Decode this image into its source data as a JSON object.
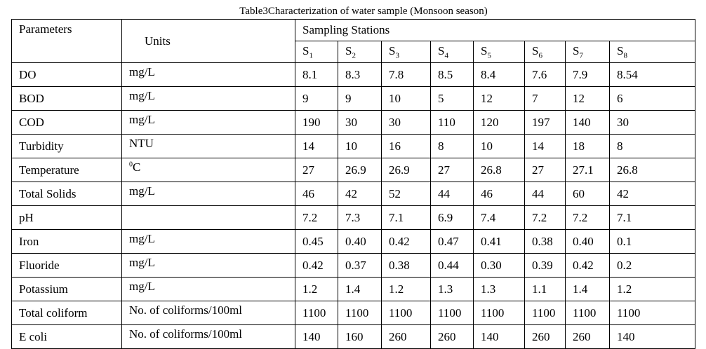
{
  "title": "Table3Characterization of water sample (Monsoon season)",
  "headers": {
    "parameters": "Parameters",
    "units": "Units",
    "sampling_stations": "Sampling Stations",
    "stations": [
      {
        "base": "S",
        "sub": "1"
      },
      {
        "base": "S",
        "sub": "2"
      },
      {
        "base": "S",
        "sub": "3"
      },
      {
        "base": "S",
        "sub": "4"
      },
      {
        "base": "S",
        "sub": "5"
      },
      {
        "base": "S",
        "sub": "6"
      },
      {
        "base": "S",
        "sub": "7"
      },
      {
        "base": "S",
        "sub": "8"
      }
    ]
  },
  "rows": [
    {
      "parameter": "DO",
      "unit": "mg/L",
      "values": [
        "8.1",
        "8.3",
        "7.8",
        "8.5",
        "8.4",
        "7.6",
        "7.9",
        "8.54"
      ]
    },
    {
      "parameter": "BOD",
      "unit": "mg/L",
      "values": [
        "9",
        "9",
        "10",
        "5",
        "12",
        "7",
        "12",
        "6"
      ]
    },
    {
      "parameter": "COD",
      "unit": "mg/L",
      "values": [
        "190",
        "30",
        "30",
        "110",
        "120",
        "197",
        "140",
        "30"
      ]
    },
    {
      "parameter": "Turbidity",
      "unit": "NTU",
      "values": [
        "14",
        "10",
        "16",
        "8",
        "10",
        "14",
        "18",
        "8"
      ]
    },
    {
      "parameter": "Temperature",
      "unit_sup": "0",
      "unit": "C",
      "values": [
        "27",
        "26.9",
        "26.9",
        "27",
        "26.8",
        "27",
        "27.1",
        "26.8"
      ]
    },
    {
      "parameter": "Total Solids",
      "unit": "mg/L",
      "values": [
        "46",
        "42",
        "52",
        "44",
        "46",
        "44",
        "60",
        "42"
      ]
    },
    {
      "parameter": "pH",
      "unit": "",
      "values": [
        "7.2",
        "7.3",
        "7.1",
        "6.9",
        "7.4",
        "7.2",
        "7.2",
        "7.1"
      ]
    },
    {
      "parameter": "Iron",
      "unit": "mg/L",
      "values": [
        "0.45",
        "0.40",
        "0.42",
        "0.47",
        "0.41",
        "0.38",
        "0.40",
        "0.1"
      ]
    },
    {
      "parameter": "Fluoride",
      "unit": "mg/L",
      "values": [
        "0.42",
        "0.37",
        "0.38",
        "0.44",
        "0.30",
        "0.39",
        "0.42",
        "0.2"
      ]
    },
    {
      "parameter": "Potassium",
      "unit": "mg/L",
      "values": [
        "1.2",
        "1.4",
        "1.2",
        "1.3",
        "1.3",
        "1.1",
        "1.4",
        "1.2"
      ]
    },
    {
      "parameter": "Total coliform",
      "unit": "No. of coliforms/100ml",
      "values": [
        "1100",
        "1100",
        "1100",
        "1100",
        "1100",
        "1100",
        "1100",
        "1100"
      ]
    },
    {
      "parameter": "E coli",
      "unit": "No. of coliforms/100ml",
      "values": [
        "140",
        "160",
        "260",
        "260",
        "140",
        "260",
        "260",
        "140"
      ]
    }
  ]
}
